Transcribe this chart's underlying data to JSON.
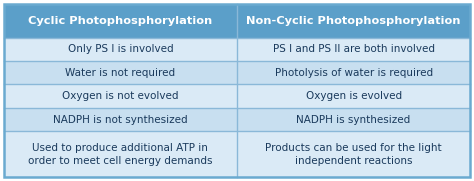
{
  "col1_header": "Cyclic Photophosphorylation",
  "col2_header": "Non-Cyclic Photophosphorylation",
  "rows": [
    [
      "Only PS I is involved",
      "PS I and PS II are both involved"
    ],
    [
      "Water is not required",
      "Photolysis of water is required"
    ],
    [
      "Oxygen is not evolved",
      "Oxygen is evolved"
    ],
    [
      "NADPH is not synthesized",
      "NADPH is synthesized"
    ],
    [
      "Used to produce additional ATP in\norder to meet cell energy demands",
      "Products can be used for the light\nindependent reactions"
    ]
  ],
  "header_bg": "#5b9fc9",
  "row_bg_a": "#daeaf6",
  "row_bg_b": "#c8dff0",
  "header_text_color": "#ffffff",
  "row_text_color": "#1a3a5c",
  "border_color": "#8ab8d8",
  "outer_border_color": "#6aaad0",
  "header_fontsize": 8.2,
  "row_fontsize": 7.5,
  "fig_bg": "#ffffff",
  "fig_w": 4.74,
  "fig_h": 1.81,
  "dpi": 100
}
